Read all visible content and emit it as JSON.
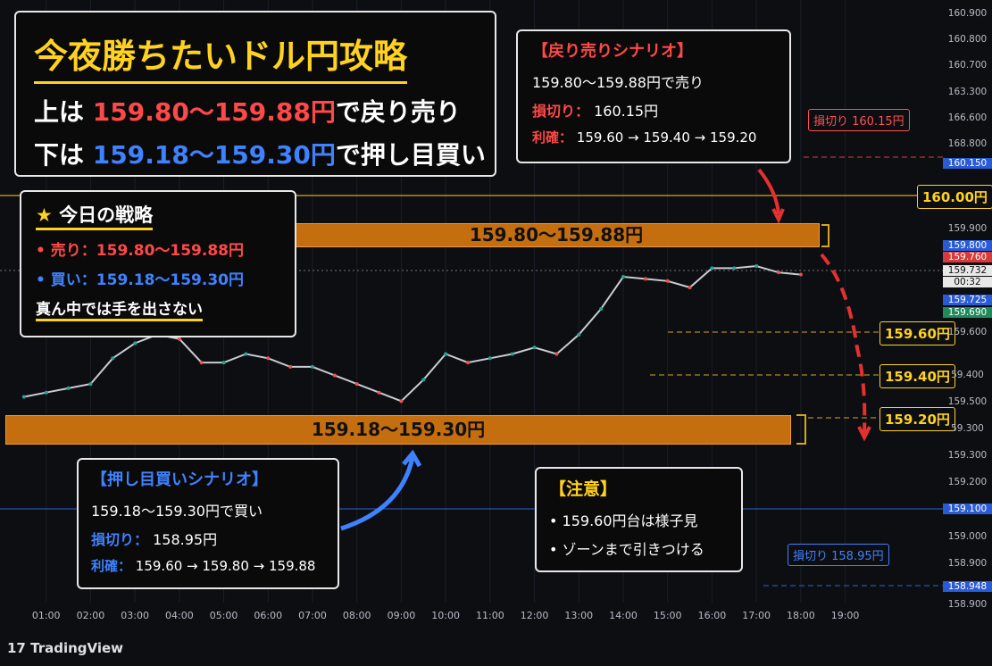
{
  "header": {
    "title": "今夜勝ちたいドル円攻略",
    "line1": [
      "上は",
      "159.80～159.88円",
      "で戻り売り"
    ],
    "line2": [
      "下は",
      "159.18～159.30円",
      "で押し目買い"
    ]
  },
  "strategy": {
    "title": "今日の戦略",
    "items": [
      "売り：159.80～159.88円",
      "買い：159.18～159.30円",
      "真ん中では手を出さない"
    ]
  },
  "sell_scenario": {
    "title": "【戻り売りシナリオ】",
    "entry": "159.80～159.88円で売り",
    "stop_label": "損切り：",
    "stop": "160.15円",
    "take_label": "利確：",
    "take": "159.60 → 159.40 → 159.20"
  },
  "buy_scenario": {
    "title": "【押し目買いシナリオ】",
    "entry": "159.18～159.30円で買い",
    "stop_label": "損切り：",
    "stop": "158.95円",
    "take_label": "利確：",
    "take": "159.60 → 159.80 → 159.88"
  },
  "caution": {
    "title": "【注意】",
    "items": [
      "159.60円台は様子見",
      "ゾーンまで引きつける"
    ]
  },
  "zones": [
    "159.80～159.88円",
    "159.18～159.30円"
  ],
  "tags": {
    "sell_stop": "損切り 160.15円",
    "level_160": "160.00円",
    "tp1": "159.60円",
    "tp2": "159.40円",
    "tp3": "159.20円",
    "buy_stop": "損切り 158.95円"
  },
  "axis_labels": [
    "160.900",
    "160.800",
    "160.700",
    "163.300",
    "166.600",
    "168.800",
    "160.150",
    "159.900",
    "159.800",
    "159.760",
    "159.732",
    "00:32",
    "159.725",
    "159.690",
    "159.600",
    "59.400",
    "159.500",
    "59.300",
    "159.300",
    "159.200",
    "159.100",
    "159.000",
    "158.900",
    "158.948",
    "158.900"
  ],
  "chart_data": {
    "type": "line",
    "color": "#c9ccd3",
    "x": [
      0.5,
      1,
      1.5,
      2,
      2.5,
      3,
      3.5,
      4,
      4.5,
      5,
      5.5,
      6,
      6.5,
      7,
      7.5,
      8,
      8.5,
      9,
      9.5,
      10,
      10.5,
      11,
      11.5,
      12,
      12.5,
      13,
      13.5,
      14,
      14.5,
      15,
      15.5,
      16,
      16.5,
      17,
      17.5,
      18
    ],
    "values": [
      159.3,
      159.32,
      159.34,
      159.36,
      159.48,
      159.55,
      159.59,
      159.57,
      159.46,
      159.46,
      159.5,
      159.48,
      159.44,
      159.44,
      159.4,
      159.36,
      159.32,
      159.28,
      159.38,
      159.5,
      159.46,
      159.48,
      159.5,
      159.53,
      159.5,
      159.59,
      159.71,
      159.86,
      159.85,
      159.84,
      159.81,
      159.9,
      159.9,
      159.91,
      159.88,
      159.87
    ],
    "xlim": [
      0,
      21
    ],
    "ylim": [
      158.32,
      161.15
    ],
    "xticks": [
      {
        "value": 1,
        "label": "01:00"
      },
      {
        "value": 2,
        "label": "02:00"
      },
      {
        "value": 3,
        "label": "03:00"
      },
      {
        "value": 4,
        "label": "04:00"
      },
      {
        "value": 5,
        "label": "05:00"
      },
      {
        "value": 6,
        "label": "06:00"
      },
      {
        "value": 7,
        "label": "07:00"
      },
      {
        "value": 8,
        "label": "08:00"
      },
      {
        "value": 9,
        "label": "09:00"
      },
      {
        "value": 10,
        "label": "10:00"
      },
      {
        "value": 11,
        "label": "11:00"
      },
      {
        "value": 12,
        "label": "12:00"
      },
      {
        "value": 13,
        "label": "13:00"
      },
      {
        "value": 14,
        "label": "14:00"
      },
      {
        "value": 15,
        "label": "15:00"
      },
      {
        "value": 16,
        "label": "16:00"
      },
      {
        "value": 17,
        "label": "17:00"
      },
      {
        "value": 18,
        "label": "18:00"
      },
      {
        "value": 19,
        "label": "19:00"
      }
    ]
  },
  "footer": "TradingView"
}
